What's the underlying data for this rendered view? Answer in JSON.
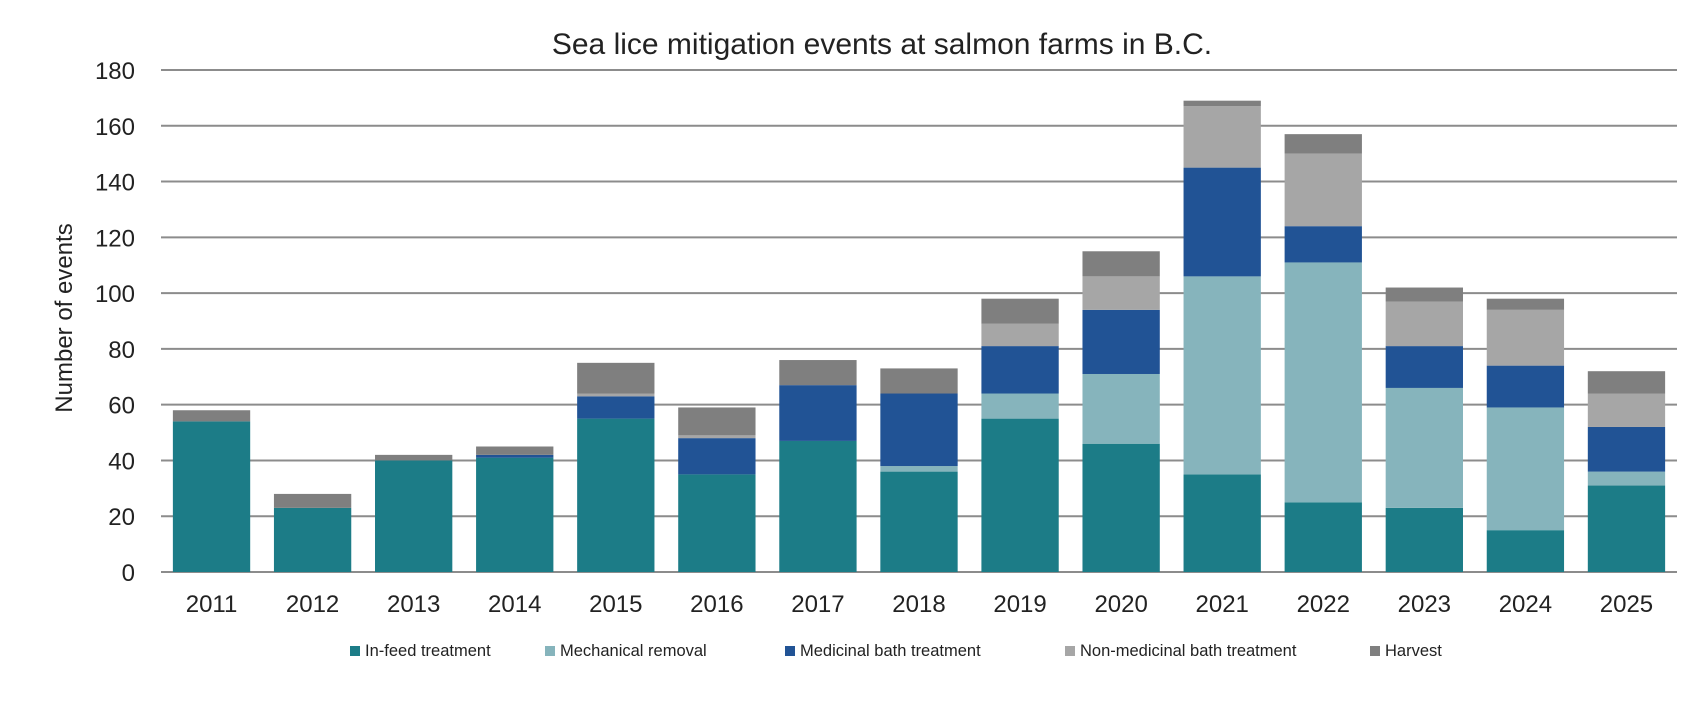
{
  "chart_data": {
    "type": "bar",
    "stacked": true,
    "title": "Sea lice mitigation events at salmon farms in B.C.",
    "xlabel": "",
    "ylabel": "Number of events",
    "ylim": [
      0,
      180
    ],
    "yticks": [
      0,
      20,
      40,
      60,
      80,
      100,
      120,
      140,
      160,
      180
    ],
    "grid": true,
    "legend_position": "bottom",
    "categories": [
      "2011",
      "2012",
      "2013",
      "2014",
      "2015",
      "2016",
      "2017",
      "2018",
      "2019",
      "2020",
      "2021",
      "2022",
      "2023",
      "2024",
      "2025"
    ],
    "series": [
      {
        "name": "In-feed treatment",
        "color": "#1c7c87",
        "values": [
          54,
          23,
          40,
          41,
          55,
          35,
          47,
          36,
          55,
          46,
          35,
          25,
          23,
          15,
          31
        ]
      },
      {
        "name": "Mechanical removal",
        "color": "#86b4bc",
        "values": [
          0,
          0,
          0,
          0,
          0,
          0,
          0,
          2,
          9,
          25,
          71,
          86,
          43,
          44,
          5
        ]
      },
      {
        "name": "Medicinal bath treatment",
        "color": "#215395",
        "values": [
          0,
          0,
          0,
          1,
          8,
          13,
          20,
          26,
          17,
          23,
          39,
          13,
          15,
          15,
          16
        ]
      },
      {
        "name": "Non-medicinal bath treatment",
        "color": "#a6a6a6",
        "values": [
          0,
          0,
          0,
          0,
          1,
          1,
          0,
          0,
          8,
          12,
          22,
          26,
          16,
          20,
          12
        ]
      },
      {
        "name": "Harvest",
        "color": "#7f7f7f",
        "values": [
          4,
          5,
          2,
          3,
          11,
          10,
          9,
          9,
          9,
          9,
          2,
          7,
          5,
          4,
          8
        ]
      }
    ]
  }
}
